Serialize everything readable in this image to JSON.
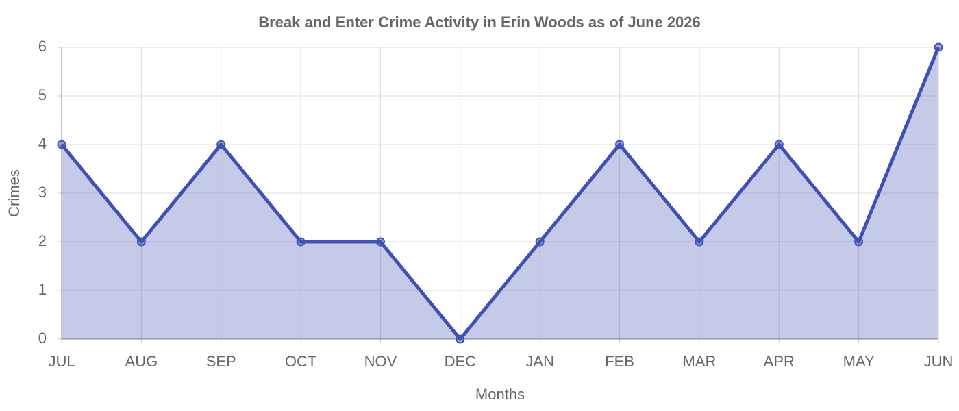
{
  "chart_data": {
    "type": "line",
    "title": "Break and Enter Crime Activity in Erin Woods as of June 2026",
    "x_label": "Months",
    "y_label": "Crimes",
    "categories": [
      "JUL",
      "AUG",
      "SEP",
      "OCT",
      "NOV",
      "DEC",
      "JAN",
      "FEB",
      "MAR",
      "APR",
      "MAY",
      "JUN"
    ],
    "values": [
      4,
      2,
      4,
      2,
      2,
      0,
      2,
      4,
      2,
      4,
      2,
      6
    ],
    "color": "#3f51b5",
    "fill": true,
    "ylim": [
      0,
      6
    ],
    "yticks": [
      0,
      1,
      2,
      3,
      4,
      5,
      6
    ],
    "grid": true
  }
}
